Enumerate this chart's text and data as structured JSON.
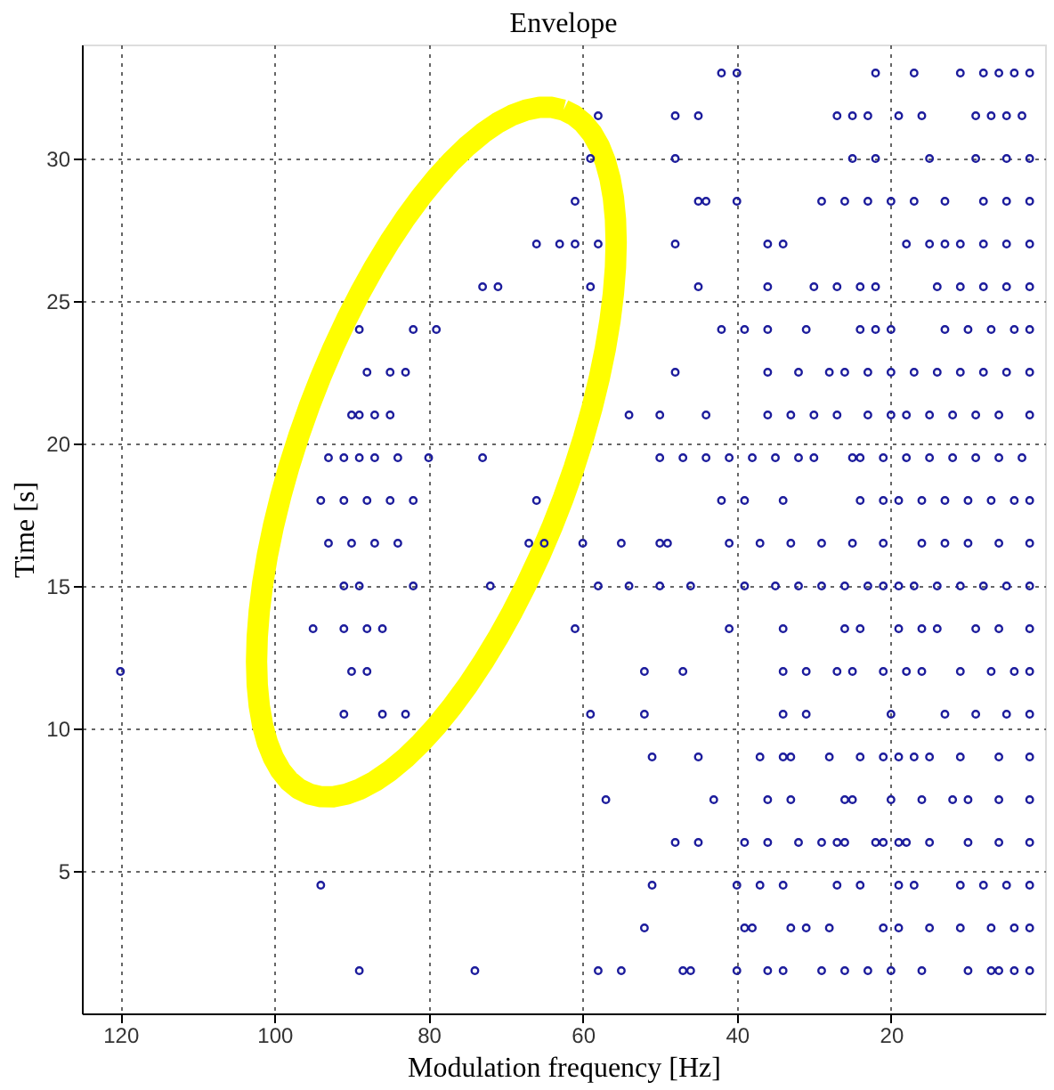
{
  "chart_data": {
    "type": "scatter",
    "title": "Envelope",
    "xlabel": "Modulation frequency [Hz]",
    "ylabel": "Time [s]",
    "xlim": [
      125,
      0
    ],
    "ylim": [
      0,
      34
    ],
    "xticks": [
      120,
      100,
      80,
      60,
      40,
      20
    ],
    "yticks": [
      5,
      10,
      15,
      20,
      25,
      30
    ],
    "grid": true,
    "marker": "circle",
    "x": [
      42,
      40,
      22,
      17,
      11,
      8,
      6,
      4,
      2,
      58,
      48,
      45,
      27,
      25,
      23,
      19,
      16,
      9,
      7,
      5,
      3,
      59,
      48,
      25,
      22,
      15,
      9,
      5,
      2,
      61,
      45,
      44,
      40,
      29,
      26,
      23,
      20,
      17,
      13,
      8,
      5,
      2,
      66,
      63,
      61,
      58,
      48,
      36,
      34,
      18,
      15,
      13,
      11,
      8,
      5,
      2,
      73,
      71,
      59,
      45,
      36,
      30,
      27,
      24,
      22,
      14,
      11,
      8,
      5,
      2,
      89,
      82,
      79,
      42,
      39,
      36,
      31,
      24,
      22,
      20,
      13,
      10,
      7,
      4,
      2,
      88,
      85,
      83,
      48,
      36,
      32,
      28,
      26,
      23,
      20,
      17,
      14,
      11,
      8,
      5,
      2,
      90,
      89,
      87,
      85,
      54,
      50,
      44,
      36,
      33,
      30,
      27,
      23,
      20,
      18,
      15,
      12,
      9,
      6,
      2,
      93,
      91,
      89,
      87,
      84,
      80,
      73,
      50,
      47,
      44,
      41,
      38,
      35,
      32,
      30,
      25,
      24,
      21,
      18,
      15,
      12,
      9,
      6,
      3,
      94,
      91,
      88,
      85,
      82,
      66,
      42,
      39,
      34,
      24,
      21,
      19,
      16,
      13,
      10,
      7,
      4,
      2,
      93,
      90,
      87,
      84,
      67,
      65,
      60,
      55,
      50,
      49,
      41,
      37,
      33,
      29,
      25,
      21,
      16,
      13,
      10,
      6,
      2,
      91,
      89,
      82,
      72,
      58,
      54,
      50,
      46,
      39,
      35,
      32,
      29,
      26,
      23,
      21,
      19,
      17,
      14,
      11,
      8,
      5,
      2,
      95,
      91,
      88,
      86,
      61,
      41,
      34,
      26,
      24,
      19,
      16,
      14,
      9,
      6,
      2,
      120,
      90,
      88,
      52,
      47,
      34,
      31,
      27,
      25,
      21,
      18,
      16,
      11,
      7,
      4,
      2,
      91,
      86,
      83,
      59,
      52,
      34,
      31,
      20,
      13,
      9,
      5,
      2,
      51,
      45,
      37,
      34,
      33,
      28,
      24,
      21,
      19,
      17,
      15,
      11,
      6,
      2,
      57,
      43,
      36,
      33,
      26,
      25,
      20,
      16,
      12,
      10,
      6,
      2,
      48,
      45,
      39,
      36,
      32,
      29,
      27,
      26,
      22,
      21,
      19,
      18,
      15,
      10,
      6,
      2,
      94,
      51,
      40,
      37,
      34,
      27,
      24,
      19,
      17,
      11,
      8,
      5,
      2,
      52,
      39,
      38,
      33,
      31,
      28,
      21,
      19,
      15,
      11,
      7,
      4,
      2,
      89,
      74,
      58,
      55,
      47,
      46,
      40,
      36,
      34,
      29,
      26,
      23,
      20,
      16,
      10,
      7,
      6,
      4,
      2
    ],
    "series": [
      {
        "color": "#1c1c9c",
        "values": [
          33,
          33,
          33,
          33,
          33,
          33,
          33,
          33,
          33,
          31.5,
          31.5,
          31.5,
          31.5,
          31.5,
          31.5,
          31.5,
          31.5,
          31.5,
          31.5,
          31.5,
          31.5,
          30,
          30,
          30,
          30,
          30,
          30,
          30,
          30,
          28.5,
          28.5,
          28.5,
          28.5,
          28.5,
          28.5,
          28.5,
          28.5,
          28.5,
          28.5,
          28.5,
          28.5,
          28.5,
          27,
          27,
          27,
          27,
          27,
          27,
          27,
          27,
          27,
          27,
          27,
          27,
          27,
          27,
          25.5,
          25.5,
          25.5,
          25.5,
          25.5,
          25.5,
          25.5,
          25.5,
          25.5,
          25.5,
          25.5,
          25.5,
          25.5,
          25.5,
          24,
          24,
          24,
          24,
          24,
          24,
          24,
          24,
          24,
          24,
          24,
          24,
          24,
          24,
          24,
          22.5,
          22.5,
          22.5,
          22.5,
          22.5,
          22.5,
          22.5,
          22.5,
          22.5,
          22.5,
          22.5,
          22.5,
          22.5,
          22.5,
          22.5,
          22.5,
          21,
          21,
          21,
          21,
          21,
          21,
          21,
          21,
          21,
          21,
          21,
          21,
          21,
          21,
          21,
          21,
          21,
          21,
          21,
          19.5,
          19.5,
          19.5,
          19.5,
          19.5,
          19.5,
          19.5,
          19.5,
          19.5,
          19.5,
          19.5,
          19.5,
          19.5,
          19.5,
          19.5,
          19.5,
          19.5,
          19.5,
          19.5,
          19.5,
          19.5,
          19.5,
          19.5,
          19.5,
          18,
          18,
          18,
          18,
          18,
          18,
          18,
          18,
          18,
          18,
          18,
          18,
          18,
          18,
          18,
          18,
          18,
          18,
          16.5,
          16.5,
          16.5,
          16.5,
          16.5,
          16.5,
          16.5,
          16.5,
          16.5,
          16.5,
          16.5,
          16.5,
          16.5,
          16.5,
          16.5,
          16.5,
          16.5,
          16.5,
          16.5,
          16.5,
          16.5,
          15,
          15,
          15,
          15,
          15,
          15,
          15,
          15,
          15,
          15,
          15,
          15,
          15,
          15,
          15,
          15,
          15,
          15,
          15,
          15,
          15,
          15,
          13.5,
          13.5,
          13.5,
          13.5,
          13.5,
          13.5,
          13.5,
          13.5,
          13.5,
          13.5,
          13.5,
          13.5,
          13.5,
          13.5,
          13.5,
          12,
          12,
          12,
          12,
          12,
          12,
          12,
          12,
          12,
          12,
          12,
          12,
          12,
          12,
          12,
          12,
          10.5,
          10.5,
          10.5,
          10.5,
          10.5,
          10.5,
          10.5,
          10.5,
          10.5,
          10.5,
          10.5,
          10.5,
          9,
          9,
          9,
          9,
          9,
          9,
          9,
          9,
          9,
          9,
          9,
          9,
          9,
          9,
          7.5,
          7.5,
          7.5,
          7.5,
          7.5,
          7.5,
          7.5,
          7.5,
          7.5,
          7.5,
          7.5,
          7.5,
          6,
          6,
          6,
          6,
          6,
          6,
          6,
          6,
          6,
          6,
          6,
          6,
          6,
          6,
          6,
          6,
          4.5,
          4.5,
          4.5,
          4.5,
          4.5,
          4.5,
          4.5,
          4.5,
          4.5,
          4.5,
          4.5,
          4.5,
          4.5,
          3,
          3,
          3,
          3,
          3,
          3,
          3,
          3,
          3,
          3,
          3,
          3,
          3,
          1.5,
          1.5,
          1.5,
          1.5,
          1.5,
          1.5,
          1.5,
          1.5,
          1.5,
          1.5,
          1.5,
          1.5,
          1.5,
          1.5,
          1.5,
          1.5,
          1.5,
          1.5,
          1.5
        ]
      }
    ]
  }
}
